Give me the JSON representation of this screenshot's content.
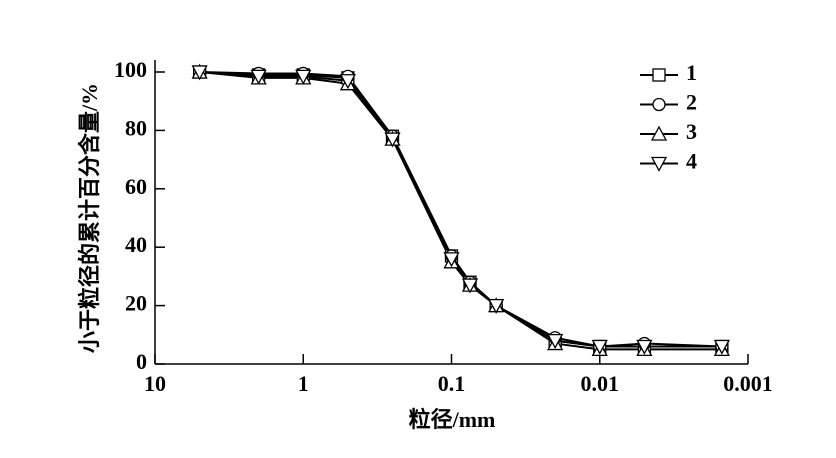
{
  "chart_data": {
    "type": "line",
    "x_label": "粒径/mm",
    "y_label": "小于粒径的累计百分含量/%",
    "x_scale": "log",
    "x": [
      5,
      2,
      1,
      0.5,
      0.25,
      0.1,
      0.075,
      0.05,
      0.02,
      0.01,
      0.005,
      0.0015
    ],
    "series": [
      {
        "name": "1",
        "color": "#000000",
        "marker": "square",
        "values": [
          100,
          99,
          99,
          98,
          78,
          37,
          28,
          20,
          8,
          6,
          6,
          6
        ]
      },
      {
        "name": "2",
        "color": "#000000",
        "marker": "circle",
        "values": [
          100,
          99.5,
          99.5,
          98.5,
          78,
          37,
          28,
          20,
          9,
          6,
          7,
          6
        ]
      },
      {
        "name": "3",
        "color": "#000000",
        "marker": "triangle-up",
        "values": [
          100,
          98,
          98,
          96,
          77,
          35,
          27,
          20,
          7,
          5,
          5,
          5
        ]
      },
      {
        "name": "4",
        "color": "#000000",
        "marker": "triangle-down",
        "values": [
          100,
          98.5,
          98.5,
          97,
          77,
          36,
          27,
          20,
          8,
          6,
          6,
          6
        ]
      }
    ],
    "xlim": [
      10,
      0.001
    ],
    "xticks": [
      10,
      1,
      0.1,
      0.01,
      0.001
    ],
    "ylim": [
      0,
      100
    ],
    "yticks": [
      0,
      20,
      40,
      60,
      80,
      100
    ],
    "legend": "top-right"
  }
}
